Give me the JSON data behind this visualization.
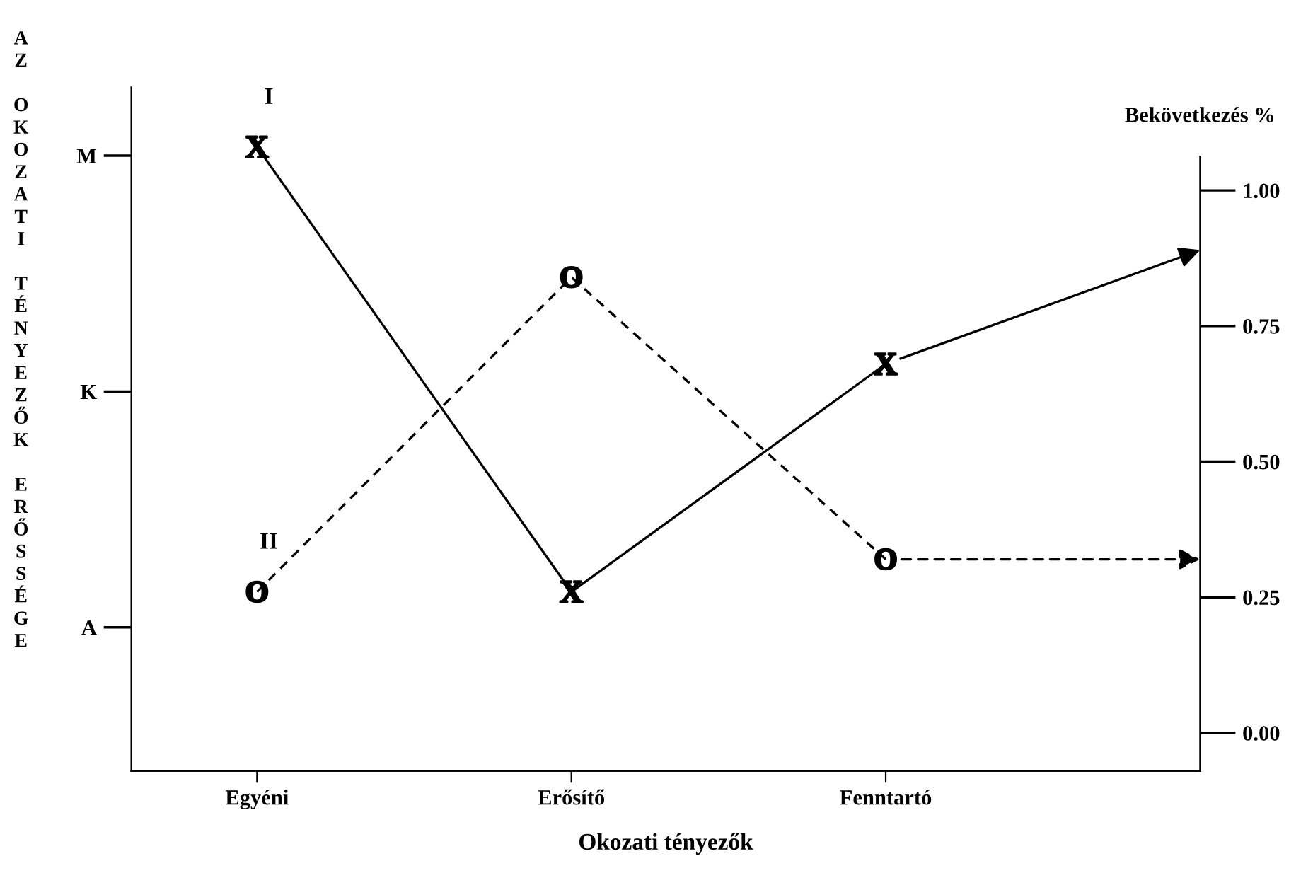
{
  "chart_data": {
    "type": "line",
    "xlabel": "Okozati tényezők",
    "ylabel": "AZ OKOZATI TÉNYEZŐK ERŐSSÉGE",
    "y2label": "Bekövetkezés %",
    "categories": [
      "Egyéni",
      "Erősítő",
      "Fenntartó",
      null
    ],
    "ylim": [
      -0.07,
      1.19
    ],
    "yticks": [
      {
        "value": 0,
        "label": "0.00"
      },
      {
        "value": 0.25,
        "label": "0.25"
      },
      {
        "value": 0.5,
        "label": "0.50"
      },
      {
        "value": 0.75,
        "label": "0.75"
      },
      {
        "value": 1,
        "label": "1.00"
      }
    ],
    "annotations": [
      "A",
      "K",
      "M"
    ],
    "series": [
      {
        "name": "I",
        "color": "#000000",
        "values": [
          1.08,
          0.26,
          0.68,
          0.89
        ],
        "marker": "cross",
        "line_style": "solid"
      },
      {
        "name": "II",
        "color": "#000000",
        "values": [
          0.26,
          0.84,
          0.32,
          0.32
        ],
        "marker": "circle",
        "line_style": "dashed"
      }
    ],
    "grid": false,
    "legend": false
  }
}
